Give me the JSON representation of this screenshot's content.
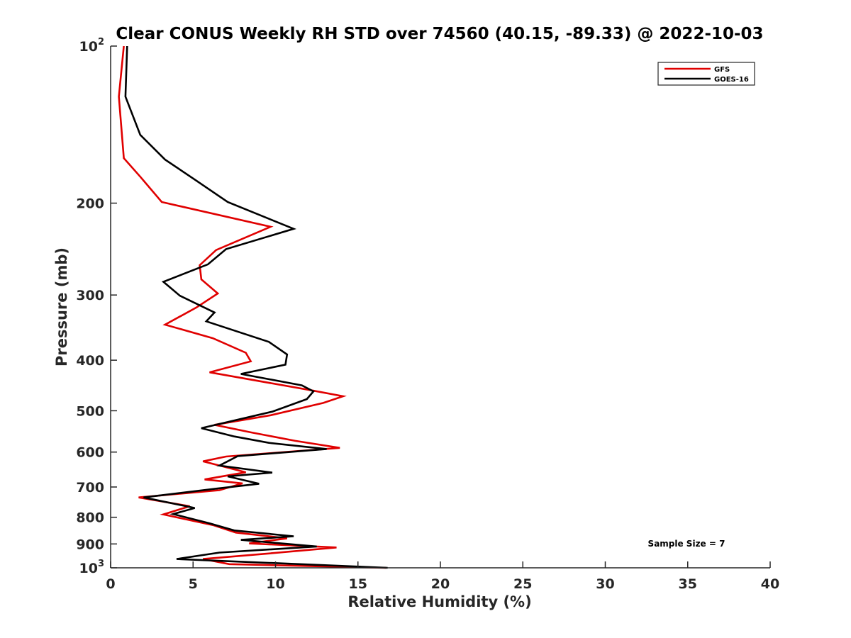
{
  "chart_data": {
    "type": "line",
    "title": "Clear CONUS Weekly RH STD over 74560 (40.15, -89.33) @ 2022-10-03",
    "xlabel": "Relative Humidity (%)",
    "ylabel": "Pressure (mb)",
    "xlim": [
      0,
      40
    ],
    "ylim": [
      100,
      1000
    ],
    "y_scale": "log",
    "y_reversed": true,
    "x_ticks": [
      "0",
      "5",
      "10",
      "15",
      "20",
      "25",
      "30",
      "35",
      "40"
    ],
    "y_ticks": [
      {
        "value": 100,
        "base": "10",
        "exp": "2"
      },
      {
        "value": 200,
        "label": "200"
      },
      {
        "value": 300,
        "label": "300"
      },
      {
        "value": 400,
        "label": "400"
      },
      {
        "value": 500,
        "label": "500"
      },
      {
        "value": 600,
        "label": "600"
      },
      {
        "value": 700,
        "label": "700"
      },
      {
        "value": 800,
        "label": "800"
      },
      {
        "value": 900,
        "label": "900"
      },
      {
        "value": 1000,
        "base": "10",
        "exp": "3"
      }
    ],
    "grid": false,
    "legend_position": "top-right",
    "annotation": "Sample Size = 7",
    "series": [
      {
        "name": "GFS",
        "color": "#e00000",
        "points": [
          [
            0.8,
            100
          ],
          [
            0.5,
            125
          ],
          [
            0.8,
            164
          ],
          [
            1.8,
            178
          ],
          [
            3.1,
            199
          ],
          [
            9.7,
            222
          ],
          [
            6.4,
            246
          ],
          [
            5.4,
            263
          ],
          [
            5.5,
            280
          ],
          [
            6.5,
            298
          ],
          [
            5.2,
            317
          ],
          [
            3.3,
            342
          ],
          [
            6.2,
            363
          ],
          [
            8.2,
            387
          ],
          [
            8.5,
            402
          ],
          [
            6.0,
            422
          ],
          [
            12.2,
            457
          ],
          [
            14.1,
            469
          ],
          [
            12.9,
            483
          ],
          [
            9.7,
            510
          ],
          [
            6.3,
            532
          ],
          [
            8.5,
            550
          ],
          [
            11.2,
            571
          ],
          [
            13.9,
            589
          ],
          [
            7.0,
            612
          ],
          [
            5.6,
            625
          ],
          [
            8.2,
            656
          ],
          [
            5.7,
            677
          ],
          [
            8.0,
            689
          ],
          [
            6.6,
            710
          ],
          [
            1.7,
            733
          ],
          [
            4.8,
            762
          ],
          [
            3.2,
            790
          ],
          [
            6.2,
            828
          ],
          [
            7.6,
            856
          ],
          [
            10.7,
            878
          ],
          [
            8.4,
            898
          ],
          [
            13.7,
            914
          ],
          [
            9.2,
            941
          ],
          [
            5.6,
            962
          ],
          [
            7.2,
            984
          ],
          [
            16.7,
            1000
          ]
        ]
      },
      {
        "name": "GOES-16",
        "color": "#000000",
        "points": [
          [
            1.0,
            100
          ],
          [
            0.9,
            125
          ],
          [
            1.8,
            148
          ],
          [
            3.3,
            165
          ],
          [
            5.3,
            182
          ],
          [
            7.1,
            199
          ],
          [
            11.1,
            224
          ],
          [
            7.0,
            245
          ],
          [
            5.9,
            262
          ],
          [
            3.2,
            283
          ],
          [
            4.2,
            301
          ],
          [
            6.3,
            324
          ],
          [
            5.8,
            337
          ],
          [
            9.6,
            369
          ],
          [
            10.7,
            390
          ],
          [
            10.6,
            408
          ],
          [
            7.9,
            425
          ],
          [
            11.6,
            447
          ],
          [
            12.3,
            459
          ],
          [
            11.9,
            475
          ],
          [
            9.8,
            502
          ],
          [
            5.5,
            540
          ],
          [
            7.5,
            560
          ],
          [
            9.6,
            576
          ],
          [
            13.1,
            592
          ],
          [
            7.7,
            611
          ],
          [
            6.6,
            637
          ],
          [
            9.8,
            657
          ],
          [
            7.1,
            668
          ],
          [
            9.0,
            690
          ],
          [
            6.4,
            705
          ],
          [
            2.0,
            733
          ],
          [
            5.1,
            768
          ],
          [
            3.8,
            789
          ],
          [
            6.0,
            822
          ],
          [
            7.5,
            848
          ],
          [
            11.1,
            870
          ],
          [
            7.9,
            884
          ],
          [
            12.5,
            910
          ],
          [
            6.6,
            935
          ],
          [
            4.0,
            962
          ],
          [
            16.8,
            1000
          ]
        ]
      }
    ]
  }
}
